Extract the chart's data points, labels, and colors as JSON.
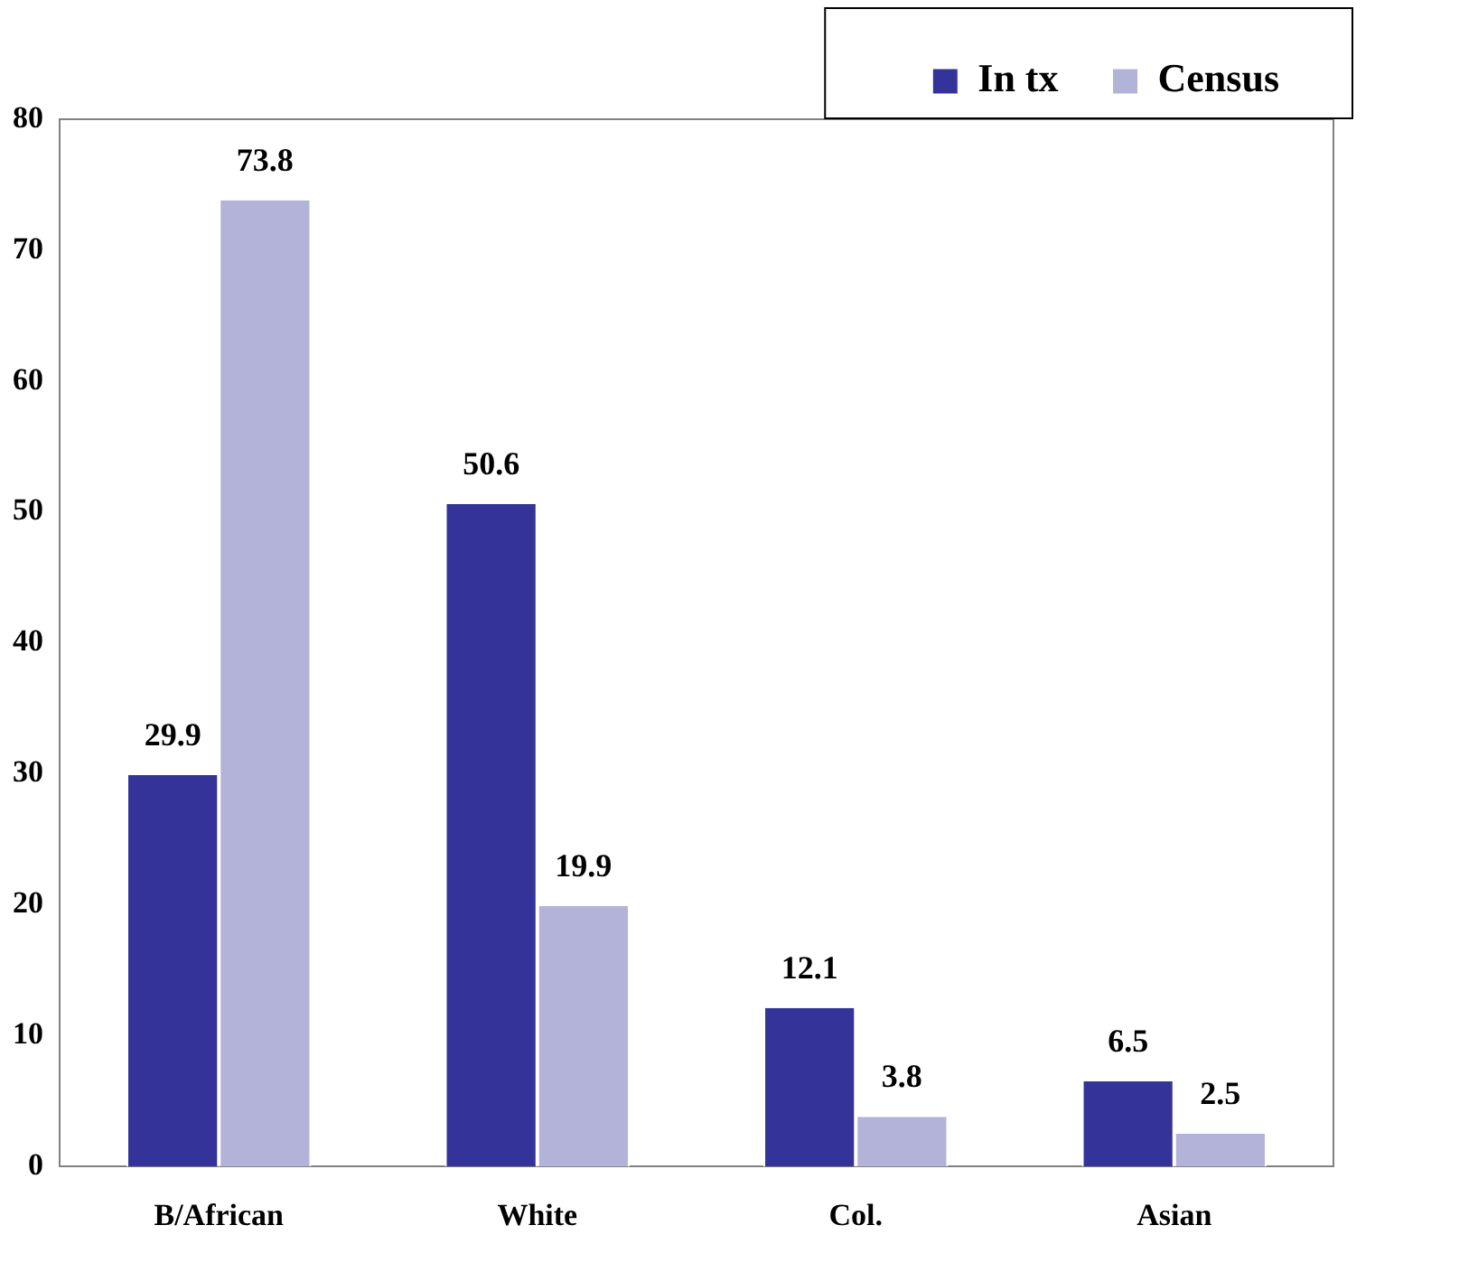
{
  "chart_data": {
    "type": "bar",
    "categories": [
      "B/African",
      "White",
      "Col.",
      "Asian"
    ],
    "series": [
      {
        "name": "In tx",
        "color": "#333399",
        "values": [
          29.9,
          50.6,
          12.1,
          6.5
        ]
      },
      {
        "name": "Census",
        "color": "#b3b3d9",
        "values": [
          73.8,
          19.9,
          3.8,
          2.5
        ]
      }
    ],
    "ylim": [
      0,
      80
    ],
    "yticks": [
      0,
      10,
      20,
      30,
      40,
      50,
      60,
      70,
      80
    ],
    "grid": false,
    "legend": "top right",
    "data_labels": true
  }
}
